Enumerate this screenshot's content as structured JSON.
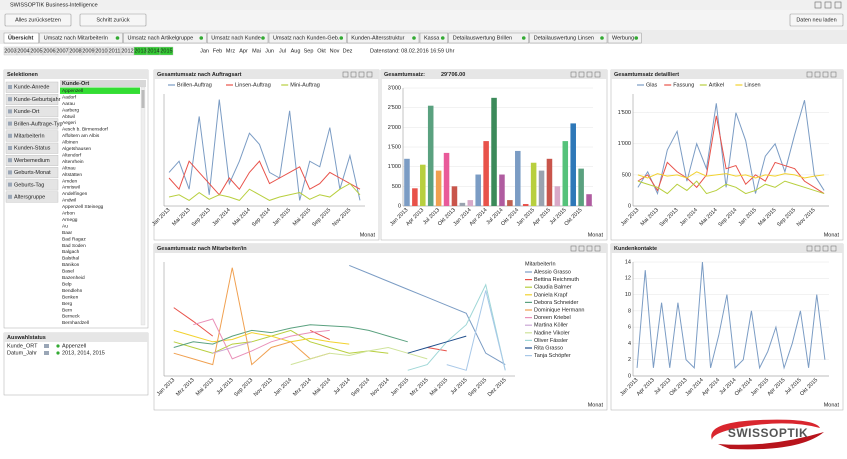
{
  "window_title": "SWISSOPTIK Business-Intelligence",
  "buttons": [
    "Alles zurücksetzen",
    "Schritt zurück",
    "Daten neu laden"
  ],
  "tabs": [
    "Übersicht",
    "Umsatz nach MitarbeiterIn",
    "Umsatz nach Artikelgruppe",
    "Umsatz nach Kunde",
    "Umsatz nach Kunden-Geb.",
    "Kunden-Altersstruktur",
    "Kassa",
    "Detailauswertung Brillen",
    "Detailauswertung Linsen",
    "Werbung"
  ],
  "years": [
    {
      "label": "2003",
      "selected": false
    },
    {
      "label": "2004",
      "selected": false
    },
    {
      "label": "2005",
      "selected": false
    },
    {
      "label": "2006",
      "selected": false
    },
    {
      "label": "2007",
      "selected": false
    },
    {
      "label": "2008",
      "selected": false
    },
    {
      "label": "2009",
      "selected": false
    },
    {
      "label": "2010",
      "selected": false
    },
    {
      "label": "2011",
      "selected": false
    },
    {
      "label": "2012",
      "selected": false
    },
    {
      "label": "2013",
      "selected": true
    },
    {
      "label": "2014",
      "selected": true
    },
    {
      "label": "2015",
      "selected": true
    }
  ],
  "months": [
    "Jan",
    "Feb",
    "Mrz",
    "Apr",
    "Mai",
    "Jun",
    "Jul",
    "Aug",
    "Sep",
    "Okt",
    "Nov",
    "Dez"
  ],
  "data_status": "Datenstand: 08.02.2016 16:59 Uhr",
  "selections": {
    "title": "Selektionen",
    "fields": [
      "Kunde-Anrede",
      "Kunde-Geburtsjahr",
      "Kunde-Ort",
      "Brillen-Auftrage-Typ",
      "MitarbeiterIn",
      "Kunden-Status",
      "Werbemedium",
      "Geburts-Monat",
      "Geburts-Tag",
      "Altersgruppe"
    ],
    "list_title": "Kunde-Ort",
    "list": [
      "Appenzell",
      "Aadorf",
      "Aarau",
      "Aarberg",
      "Abtwil",
      "Aegeri",
      "Aesch b. Birmensdorf",
      "Affoltern am Albis",
      "Albinen",
      "Algetshausen",
      "Altendorf",
      "Altenrhein",
      "Altnau",
      "Altstätten",
      "Amden",
      "Amriswil",
      "Andelfingen",
      "Andwil",
      "Appenzell Steinegg",
      "Arbon",
      "Arnegg",
      "Au",
      "Baar",
      "Bad Ragaz",
      "Bad Soden",
      "Balgach",
      "Balsthal",
      "Bänikon",
      "Basel",
      "Bazenheid",
      "Belp",
      "Bendlehn",
      "Benken",
      "Berg",
      "Bern",
      "Berneck",
      "Bernhardzell"
    ],
    "selected_index": 0
  },
  "status": {
    "title": "Auswahlstatus",
    "rows": [
      [
        "Kunde_ORT",
        "Appenzell"
      ],
      [
        "Datum_Jahr",
        "2013, 2014, 2015"
      ]
    ]
  },
  "logo": "SWISSOPTIK",
  "chart_data": [
    {
      "type": "line",
      "title": "Gesamtumsatz nach Auftragsart",
      "x_label": "Monat",
      "legend": "top",
      "categories": [
        "Jan 2013",
        null,
        "Mai 2013",
        null,
        "Sep 2013",
        null,
        "Jan 2014",
        null,
        "Mai 2014",
        null,
        "Sep 2014",
        null,
        "Jan 2015",
        null,
        "Mai 2015",
        null,
        "Sep 2015",
        null,
        "Nov 2015",
        null
      ],
      "ylim": [
        0,
        100
      ],
      "series": [
        {
          "name": "Brillen-Auftrag",
          "color": "#7b9cc4",
          "values": [
            30,
            40,
            15,
            80,
            10,
            95,
            20,
            40,
            65,
            55,
            30,
            25,
            85,
            5,
            40,
            35,
            70,
            15,
            45,
            5
          ]
        },
        {
          "name": "Linsen-Auftrag",
          "color": "#e8524a",
          "values": [
            25,
            15,
            40,
            30,
            20,
            10,
            25,
            15,
            30,
            40,
            20,
            25,
            30,
            35,
            15,
            20,
            30,
            25,
            20,
            15
          ]
        },
        {
          "name": "Mini-Auftrag",
          "color": "#b8cf3e",
          "values": [
            8,
            10,
            5,
            12,
            6,
            10,
            8,
            5,
            15,
            10,
            5,
            8,
            10,
            12,
            6,
            10,
            8,
            15,
            20,
            10
          ]
        }
      ]
    },
    {
      "type": "bar",
      "title": "Gesamtumsatz:",
      "subtitle": "29'706.00",
      "x_label": "Monat",
      "categories": [
        "Jan 2013",
        null,
        "Apr 2013",
        null,
        "Jul 2013",
        null,
        "Okt 2013",
        null,
        "Jan 2014",
        null,
        "Apr 2014",
        null,
        "Jul 2014",
        null,
        "Okt 2014",
        null,
        "Jan 2015",
        null,
        "Apr 2015",
        null,
        "Jul 2015",
        null,
        "Okt 2015",
        null
      ],
      "values": [
        1200,
        450,
        1050,
        2550,
        900,
        1350,
        500,
        80,
        150,
        800,
        1650,
        2750,
        800,
        150,
        1400,
        50,
        1100,
        900,
        1200,
        500,
        1650,
        2100,
        950,
        300
      ],
      "colors": [
        "#7b9cc4",
        "#e8524a",
        "#b8cf3e",
        "#5aa17f",
        "#f0a050",
        "#e95a9a",
        "#c9554b",
        "#9aa3b0",
        "#d8a9c8",
        "#7b9cc4",
        "#e8524a",
        "#3c8a5a",
        "#b05ca0",
        "#c06050",
        "#7b9cc4",
        "#e8524a",
        "#b8cf3e",
        "#9aa3b0",
        "#c9554b",
        "#d8a9c8",
        "#55c27a",
        "#2e78b8",
        "#5aa17f",
        "#b05ca0"
      ],
      "ylim": [
        0,
        3000
      ],
      "yticks": [
        0,
        500,
        {
          "value": 1000,
          "label": "1'000"
        },
        {
          "value": 1500,
          "label": "1'500"
        },
        {
          "value": 2000,
          "label": "2'000"
        },
        {
          "value": 2500,
          "label": "2'500"
        },
        {
          "value": 3000,
          "label": "3'000"
        }
      ]
    },
    {
      "type": "line",
      "title": "Gesamtumsatz detailliert",
      "x_label": "Monat",
      "legend": "top",
      "categories": [
        "Jan 2013",
        null,
        "Mai 2013",
        null,
        "Sep 2013",
        null,
        "Jan 2014",
        null,
        "Mai 2014",
        null,
        "Sep 2014",
        null,
        "Jan 2015",
        null,
        "Mai 2015",
        null,
        "Sep 2015",
        null,
        "Nov 2015",
        null
      ],
      "ylim": [
        0,
        1800
      ],
      "yticks": [
        0,
        500,
        {
          "value": 1000,
          "label": "1'000"
        },
        {
          "value": 1500,
          "label": "1'500"
        }
      ],
      "series": [
        {
          "name": "Glas",
          "color": "#7b9cc4",
          "values": [
            300,
            550,
            200,
            900,
            1200,
            400,
            1000,
            600,
            1650,
            300,
            1500,
            1050,
            200,
            800,
            1000,
            550,
            1150,
            1700,
            500,
            250
          ]
        },
        {
          "name": "Fassung",
          "color": "#e8524a",
          "values": [
            400,
            500,
            250,
            700,
            550,
            450,
            300,
            500,
            1450,
            600,
            650,
            350,
            500,
            400,
            700,
            650,
            600,
            400,
            300,
            200
          ]
        },
        {
          "name": "Artikel",
          "color": "#b8cf3e",
          "values": [
            400,
            350,
            300,
            200,
            350,
            250,
            400,
            200,
            250,
            350,
            300,
            200,
            250,
            350,
            300,
            400,
            350,
            300,
            250,
            200
          ]
        },
        {
          "name": "Linsen",
          "color": "#f2d22e",
          "values": [
            500,
            450,
            520,
            480,
            500,
            450,
            550,
            480,
            500,
            520,
            480,
            500,
            450,
            500,
            480,
            520,
            500,
            450,
            480,
            500
          ]
        }
      ]
    },
    {
      "type": "line",
      "title": "Gesamtumsatz nach Mitarbeiter/in",
      "x_label": "Monat",
      "legend": "right",
      "legend_title": "MitarbeiterIn",
      "categories": [
        "Jan 2013",
        "Mrz 2013",
        "Mai 2013",
        "Jul 2013",
        "Sep 2013",
        "Nov 2013",
        "Jan 2014",
        "Mrz 2014",
        "Mai 2014",
        "Jul 2014",
        "Sep 2014",
        "Nov 2014",
        "Jan 2015",
        "Mrz 2015",
        "Mai 2015",
        "Jul 2015",
        "Sep 2015",
        "Dez 2015"
      ],
      "ylim": [
        0,
        100
      ],
      "series": [
        {
          "name": "Alessio Grasso",
          "color": "#7b9cc4",
          "values": [
            null,
            null,
            null,
            null,
            null,
            null,
            null,
            null,
            null,
            97,
            90,
            83,
            76,
            69,
            62,
            55,
            20,
            10
          ]
        },
        {
          "name": "Bettina Reichmuth",
          "color": "#e8524a",
          "values": [
            60,
            48,
            35,
            null,
            null,
            null,
            null,
            40,
            32,
            null,
            null,
            null,
            null,
            25,
            22,
            null,
            null,
            null
          ]
        },
        {
          "name": "Claudia Balmer",
          "color": "#b8cf3e",
          "values": [
            30,
            25,
            20,
            28,
            30,
            35,
            40,
            30,
            25,
            20,
            22,
            20,
            null,
            null,
            null,
            null,
            null,
            null
          ]
        },
        {
          "name": "Daniela Krapf",
          "color": "#f2d22e",
          "values": [
            40,
            35,
            30,
            32,
            38,
            35,
            30,
            33,
            30,
            28,
            null,
            null,
            null,
            null,
            null,
            null,
            null,
            null
          ]
        },
        {
          "name": "Debora Schneider",
          "color": "#5aa17f",
          "values": [
            25,
            30,
            28,
            35,
            40,
            38,
            42,
            45,
            44,
            43,
            40,
            35,
            30,
            null,
            null,
            null,
            null,
            null
          ]
        },
        {
          "name": "Dominique Hermann",
          "color": "#f0a050",
          "values": [
            20,
            15,
            10,
            95,
            10,
            25,
            30,
            15,
            20,
            null,
            null,
            null,
            null,
            null,
            null,
            null,
            null,
            null
          ]
        },
        {
          "name": "Doreen Kriebel",
          "color": "#e990b8",
          "values": [
            null,
            45,
            50,
            15,
            22,
            30,
            35,
            38,
            40,
            null,
            null,
            null,
            null,
            null,
            null,
            null,
            null,
            null
          ]
        },
        {
          "name": "Martina Köller",
          "color": "#c9a6d6",
          "values": [
            null,
            null,
            20,
            25,
            30,
            null,
            null,
            null,
            null,
            null,
            null,
            null,
            null,
            null,
            null,
            null,
            null,
            null
          ]
        },
        {
          "name": "Nadine Vikoler",
          "color": "#cfe39a",
          "values": [
            null,
            null,
            null,
            null,
            null,
            null,
            10,
            15,
            20,
            18,
            22,
            25,
            20,
            15,
            null,
            null,
            null,
            null
          ]
        },
        {
          "name": "Oliver Fässler",
          "color": "#9fd7d7",
          "values": [
            null,
            null,
            null,
            null,
            null,
            null,
            null,
            null,
            null,
            null,
            null,
            null,
            5,
            10,
            30,
            45,
            80,
            5
          ]
        },
        {
          "name": "Rita Grasso",
          "color": "#1f4e8c",
          "values": [
            null,
            null,
            null,
            null,
            null,
            null,
            null,
            null,
            null,
            null,
            null,
            null,
            20,
            25,
            30,
            35,
            null,
            null
          ]
        },
        {
          "name": "Tanja Schöpfer",
          "color": "#a8c8e8",
          "values": [
            null,
            null,
            null,
            null,
            null,
            null,
            null,
            null,
            null,
            null,
            null,
            null,
            null,
            null,
            10,
            5,
            75,
            5
          ]
        }
      ]
    },
    {
      "type": "line",
      "title": "Kundenkontakte",
      "x_label": "Monat",
      "categories": [
        "Jan 2013",
        null,
        "Apr 2013",
        null,
        "Jul 2013",
        null,
        "Okt 2013",
        null,
        "Jan 2014",
        null,
        "Apr 2014",
        null,
        "Jul 2014",
        null,
        "Okt 2014",
        null,
        "Jan 2015",
        null,
        "Apr 2015",
        null,
        "Jul 2015",
        null,
        "Okt 2015",
        null
      ],
      "ylim": [
        0,
        14
      ],
      "yticks": [
        0,
        2,
        4,
        6,
        8,
        10,
        12,
        14
      ],
      "series": [
        {
          "name": "Kundenkontakte",
          "color": "#7b9cc4",
          "values": [
            1,
            13,
            1,
            9,
            1,
            9,
            2,
            1,
            14,
            1,
            5,
            10,
            1,
            2,
            8,
            1,
            3,
            6,
            1,
            4,
            8,
            1,
            10,
            2
          ]
        }
      ]
    }
  ]
}
